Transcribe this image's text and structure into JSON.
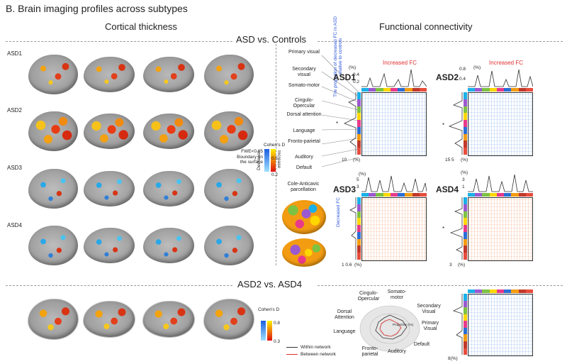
{
  "figure_title": "B. Brain imaging profiles across subtypes",
  "headers": {
    "cortical_thickness": "Cortical thickness",
    "functional_connectivity": "Functional connectivity",
    "asd_vs_controls": "ASD vs. Controls",
    "asd2_vs_asd4": "ASD2 vs. ASD4"
  },
  "row_labels": [
    "ASD1",
    "ASD2",
    "ASD3",
    "ASD4"
  ],
  "colorbar_ct": {
    "fwe": "FWE<0.05",
    "boundary": "Boundary on the surface",
    "title": "Cohen's D",
    "decrease": "Decrease",
    "increase": "Increase",
    "max": "0.5",
    "min": "0.2"
  },
  "colorbar_asd24": {
    "title": "Cohen's D",
    "max": "0.8",
    "min": "0.3"
  },
  "networks": [
    "Primary visual",
    "Secondary visual",
    "Somato-motor",
    "Cingulo-Opercular",
    "Dorsal attention",
    "Language",
    "Fronto-parietal",
    "Auditory",
    "Default"
  ],
  "parcellation": "Cole-Anticavic parcellation",
  "side_label": "The proportion of decreased FC in ASD relative to controls",
  "decreased_fc": "Decreased FC",
  "increased_fc": "Increased FC",
  "matrices": [
    {
      "label": "ASD1",
      "top_pct": "(%)",
      "top_t1": "0.4",
      "top_t2": "0.2",
      "left_ticks": "10",
      "left_pct": "(%)",
      "star": "*"
    },
    {
      "label": "ASD2",
      "top_pct": "(%)",
      "top_t1": "0.8",
      "top_t2": "0.4",
      "left_ticks": "15  5",
      "left_pct": "(%)",
      "star": "*"
    },
    {
      "label": "ASD3",
      "top_pct": "(%)",
      "top_t1": "5",
      "top_t2": "3",
      "left_ticks": "1  0.6",
      "left_pct": "(%)",
      "star": ""
    },
    {
      "label": "ASD4",
      "top_pct": "(%)",
      "top_t1": "3",
      "top_t2": "1",
      "left_ticks": "3",
      "left_pct": "(%)",
      "star": "*"
    }
  ],
  "radar": {
    "axes": [
      "Somato-motor",
      "Secondary Visual",
      "Primary Visual",
      "Default",
      "Auditory",
      "Fronto-parietal",
      "Language",
      "Dorsal Attention",
      "Cingulo-Opercular"
    ],
    "legend_within": "Within network",
    "legend_between": "Between network",
    "center_tick": "Proportion (%)",
    "colors": {
      "within": "#333333",
      "between": "#e03030"
    }
  },
  "asd24_matrix": {
    "left_pct": "8(%)"
  },
  "network_colors": [
    "#1ab0e8",
    "#2a6fd6",
    "#7dc242",
    "#ffd700",
    "#e83a8a",
    "#9b59d0",
    "#f39c12",
    "#c0392b",
    "#e74c3c"
  ]
}
